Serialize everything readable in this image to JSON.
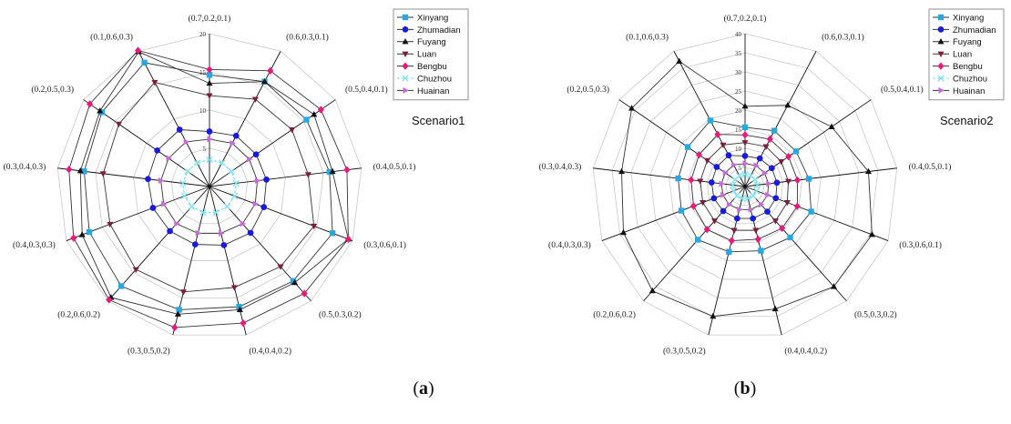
{
  "chart_data": [
    {
      "type": "radar",
      "panel_label": "(a)",
      "panel_letter": "a",
      "scenario": "Scenario1",
      "rmax": 20,
      "ticks": [
        5,
        10,
        15,
        20
      ],
      "grid": true,
      "legend_position": "top-right",
      "axes": [
        "(0.7,0.2,0.1)",
        "(0.6,0.3,0.1)",
        "(0.5,0.4,0.1)",
        "(0.4,0.5,0.1)",
        "(0.3,0.6,0.1)",
        "(0.5,0.3,0.2)",
        "(0.4,0.4,0.2)",
        "(0.3,0.5,0.2)",
        "(0.2,0.6,0.2)",
        "(0.4,0.3,0.3)",
        "(0.3,0.4,0.3)",
        "(0.2,0.5,0.3)",
        "(0.1,0.6,0.3)"
      ],
      "series": [
        {
          "name": "Xinyang",
          "color": "#29a8e0",
          "marker": "square",
          "values": [
            14.6,
            15.5,
            15.4,
            15.8,
            17.2,
            16.5,
            16.2,
            16.6,
            17.4,
            16.8,
            16.5,
            17.1,
            18.3
          ]
        },
        {
          "name": "Zhumadian",
          "color": "#1a1adb",
          "marker": "circle",
          "values": [
            7.2,
            7.5,
            7.4,
            7.5,
            7.6,
            8.1,
            7.9,
            7.8,
            7.8,
            7.9,
            8.1,
            8.3,
            8.4
          ]
        },
        {
          "name": "Fuyang",
          "color": "#111111",
          "marker": "triangle",
          "values": [
            13.5,
            15.5,
            16.6,
            16.2,
            19.4,
            16.8,
            16.6,
            17.2,
            19.4,
            17.8,
            17.0,
            17.4,
            19.9
          ]
        },
        {
          "name": "Luan",
          "color": "#7a1f3d",
          "marker": "triangle-down",
          "values": [
            11.9,
            12.9,
            13.1,
            13.0,
            14.6,
            14.0,
            13.6,
            14.2,
            14.5,
            13.9,
            14.0,
            14.4,
            15.4
          ]
        },
        {
          "name": "Bengbu",
          "color": "#e8197a",
          "marker": "diamond",
          "values": [
            15.3,
            17.1,
            17.7,
            18.1,
            19.4,
            18.7,
            18.4,
            19.0,
            19.8,
            19.0,
            18.5,
            19.0,
            20.1
          ]
        },
        {
          "name": "Chuzhou",
          "color": "#7fe0ee",
          "marker": "cross",
          "values": [
            3.5,
            3.5,
            3.5,
            3.5,
            3.5,
            3.5,
            3.5,
            3.5,
            3.5,
            3.5,
            3.5,
            3.5,
            3.5
          ]
        },
        {
          "name": "Huainan",
          "color": "#c86bd8",
          "marker": "triangle-right",
          "values": [
            6.2,
            6.4,
            6.3,
            6.3,
            6.4,
            6.5,
            6.3,
            6.3,
            6.5,
            6.4,
            6.4,
            6.5,
            6.6
          ]
        }
      ]
    },
    {
      "type": "radar",
      "panel_label": "(b)",
      "panel_letter": "b",
      "scenario": "Scenario2",
      "rmax": 40,
      "ticks": [
        5,
        10,
        15,
        20,
        25,
        30,
        35,
        40
      ],
      "grid": true,
      "legend_position": "top-right",
      "axes": [
        "(0.7,0.2,0.1)",
        "(0.6,0.3,0.1)",
        "(0.5,0.4,0.1)",
        "(0.4,0.5,0.1)",
        "(0.3,0.6,0.1)",
        "(0.5,0.3,0.2)",
        "(0.4,0.4,0.2)",
        "(0.3,0.5,0.2)",
        "(0.2,0.6,0.2)",
        "(0.4,0.3,0.3)",
        "(0.3,0.4,0.3)",
        "(0.2,0.5,0.3)",
        "(0.1,0.6,0.3)"
      ],
      "series": [
        {
          "name": "Xinyang",
          "color": "#29a8e0",
          "marker": "square",
          "values": [
            15.5,
            16.5,
            16.2,
            16.8,
            18.5,
            17.8,
            17.3,
            17.6,
            18.6,
            17.8,
            17.6,
            18.2,
            19.5
          ]
        },
        {
          "name": "Zhumadian",
          "color": "#1a1adb",
          "marker": "circle",
          "values": [
            8.0,
            8.3,
            8.5,
            8.4,
            8.6,
            8.8,
            8.6,
            8.6,
            8.6,
            8.7,
            8.8,
            9.0,
            9.2
          ]
        },
        {
          "name": "Fuyang",
          "color": "#111111",
          "marker": "triangle",
          "values": [
            21.0,
            24.0,
            27.5,
            32.5,
            35.5,
            35.0,
            33.0,
            35.0,
            36.5,
            34.0,
            32.5,
            36.0,
            37.0
          ]
        },
        {
          "name": "Luan",
          "color": "#7a1f3d",
          "marker": "triangle-down",
          "values": [
            11.5,
            11.8,
            11.5,
            11.4,
            11.8,
            12.0,
            11.8,
            11.8,
            12.0,
            11.8,
            11.8,
            12.0,
            12.3
          ]
        },
        {
          "name": "Bengbu",
          "color": "#e8197a",
          "marker": "diamond",
          "values": [
            13.5,
            14.0,
            13.8,
            13.8,
            14.6,
            14.6,
            14.2,
            14.6,
            15.0,
            14.4,
            14.2,
            14.6,
            15.4
          ]
        },
        {
          "name": "Chuzhou",
          "color": "#7fe0ee",
          "marker": "cross",
          "values": [
            3.2,
            3.2,
            3.2,
            3.2,
            3.2,
            3.2,
            3.2,
            3.2,
            3.2,
            3.2,
            3.2,
            3.2,
            3.2
          ]
        },
        {
          "name": "Huainan",
          "color": "#c86bd8",
          "marker": "triangle-right",
          "values": [
            6.0,
            6.2,
            6.2,
            6.2,
            6.3,
            6.3,
            6.2,
            6.2,
            6.3,
            6.2,
            6.2,
            6.3,
            6.4
          ]
        }
      ]
    }
  ]
}
